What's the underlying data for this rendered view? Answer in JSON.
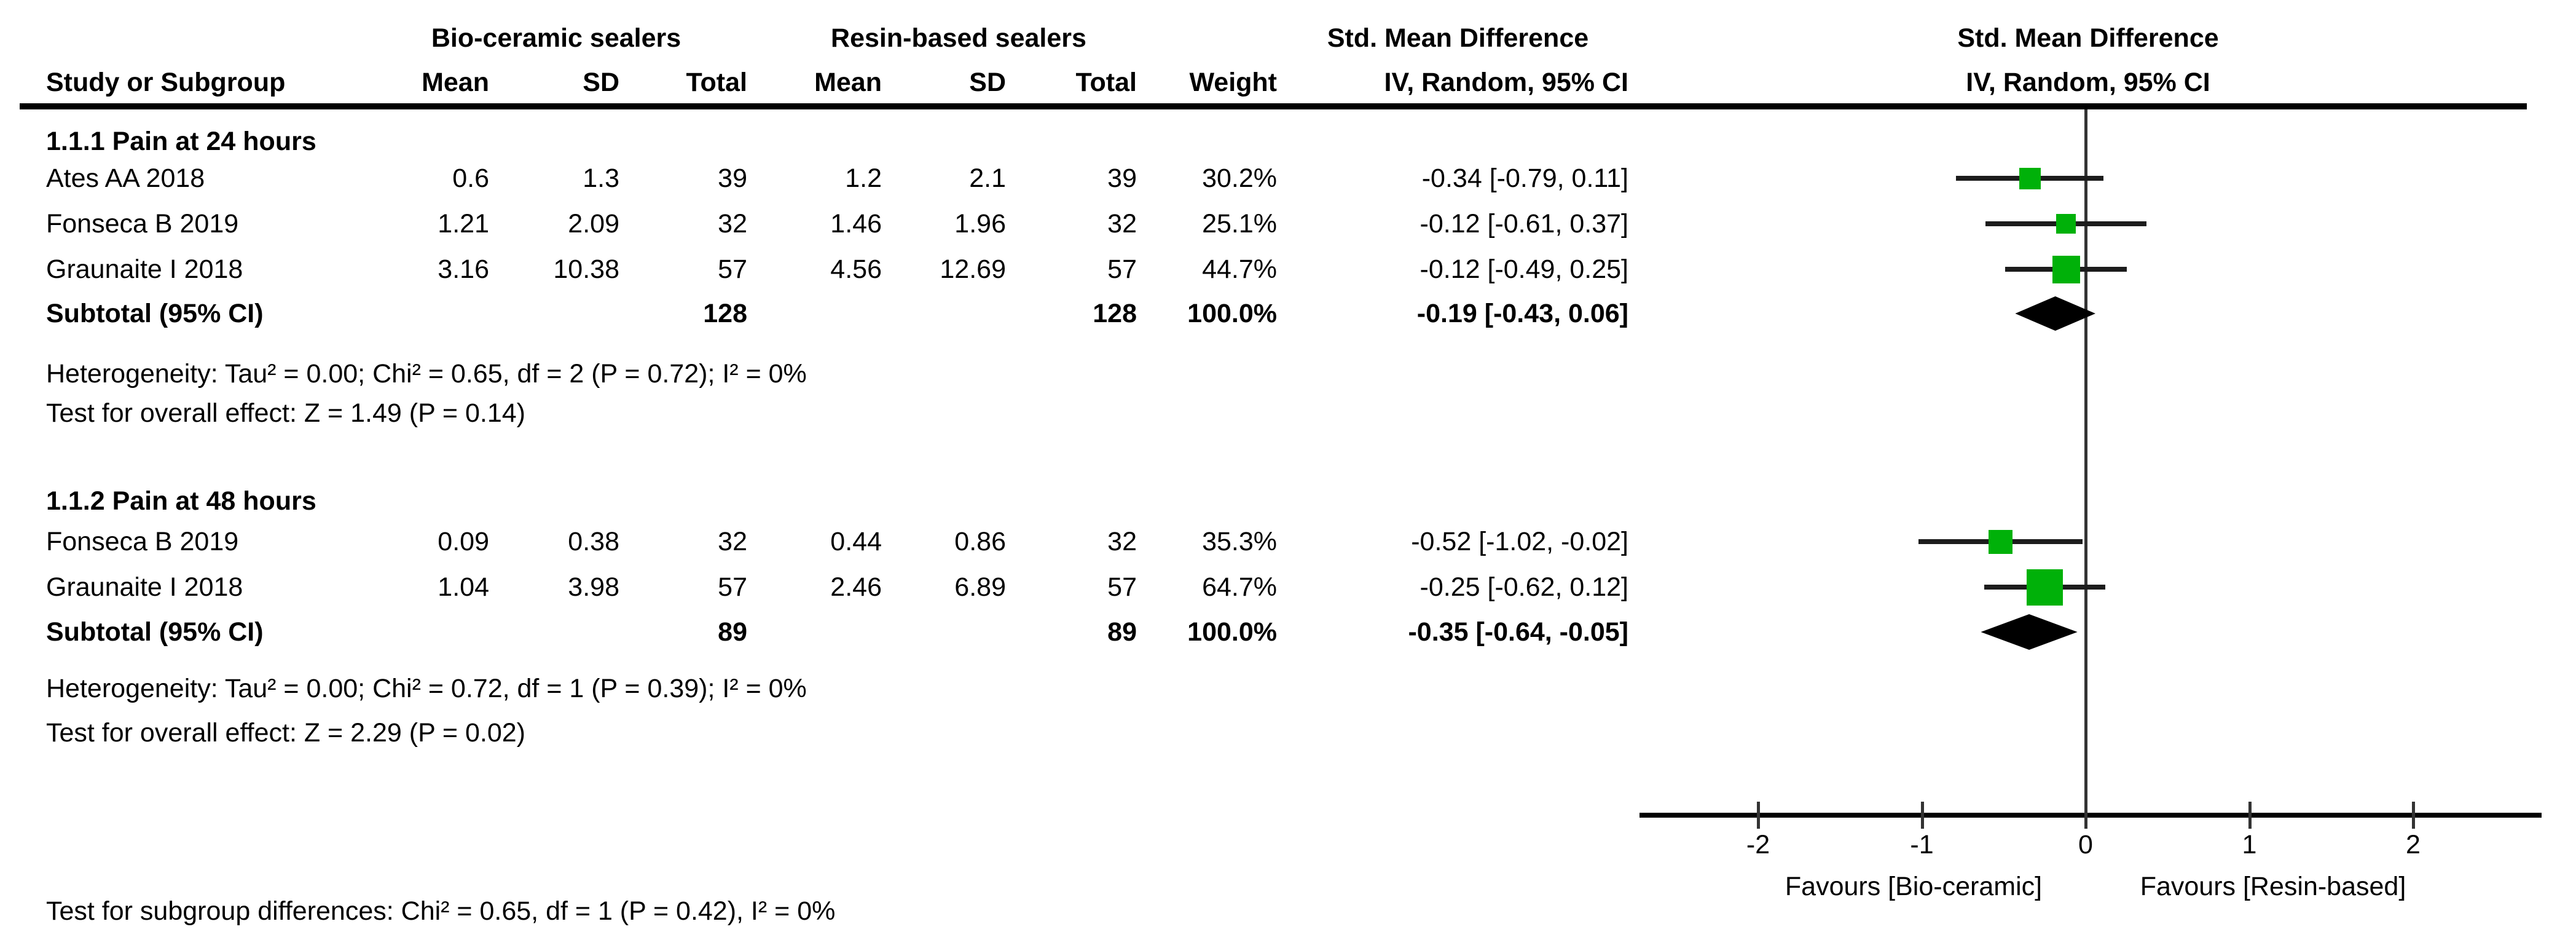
{
  "header": {
    "group1": "Bio-ceramic sealers",
    "group2": "Resin-based sealers",
    "effect_title": "Std. Mean Difference",
    "effect_subtitle": "IV, Random, 95% CI",
    "plot_title": "Std. Mean Difference",
    "plot_subtitle": "IV, Random, 95% CI",
    "columns": {
      "study": "Study or Subgroup",
      "mean1": "Mean",
      "sd1": "SD",
      "total1": "Total",
      "mean2": "Mean",
      "sd2": "SD",
      "total2": "Total",
      "weight": "Weight",
      "ci": "IV, Random, 95% CI"
    }
  },
  "sections": [
    {
      "label": "1.1.1 Pain at 24 hours",
      "rows": [
        {
          "study": "Ates AA 2018",
          "mean1": "0.6",
          "sd1": "1.3",
          "total1": "39",
          "mean2": "1.2",
          "sd2": "2.1",
          "total2": "39",
          "weight": "30.2%",
          "ci": "-0.34 [-0.79, 0.11]"
        },
        {
          "study": "Fonseca B 2019",
          "mean1": "1.21",
          "sd1": "2.09",
          "total1": "32",
          "mean2": "1.46",
          "sd2": "1.96",
          "total2": "32",
          "weight": "25.1%",
          "ci": "-0.12 [-0.61, 0.37]"
        },
        {
          "study": "Graunaite I 2018",
          "mean1": "3.16",
          "sd1": "10.38",
          "total1": "57",
          "mean2": "4.56",
          "sd2": "12.69",
          "total2": "57",
          "weight": "44.7%",
          "ci": "-0.12 [-0.49, 0.25]"
        }
      ],
      "subtotal": {
        "label": "Subtotal (95% CI)",
        "total1": "128",
        "total2": "128",
        "weight": "100.0%",
        "ci": "-0.19 [-0.43, 0.06]"
      },
      "heterogeneity": "Heterogeneity: Tau² = 0.00; Chi² = 0.65, df = 2 (P = 0.72); I² = 0%",
      "overall_effect": "Test for overall effect: Z = 1.49 (P = 0.14)"
    },
    {
      "label": "1.1.2 Pain at 48 hours",
      "rows": [
        {
          "study": "Fonseca B 2019",
          "mean1": "0.09",
          "sd1": "0.38",
          "total1": "32",
          "mean2": "0.44",
          "sd2": "0.86",
          "total2": "32",
          "weight": "35.3%",
          "ci": "-0.52 [-1.02, -0.02]"
        },
        {
          "study": "Graunaite I 2018",
          "mean1": "1.04",
          "sd1": "3.98",
          "total1": "57",
          "mean2": "2.46",
          "sd2": "6.89",
          "total2": "57",
          "weight": "64.7%",
          "ci": "-0.25 [-0.62, 0.12]"
        }
      ],
      "subtotal": {
        "label": "Subtotal (95% CI)",
        "total1": "89",
        "total2": "89",
        "weight": "100.0%",
        "ci": "-0.35 [-0.64, -0.05]"
      },
      "heterogeneity": "Heterogeneity: Tau² = 0.00; Chi² = 0.72, df = 1 (P = 0.39); I² = 0%",
      "overall_effect": "Test for overall effect: Z = 2.29 (P = 0.02)"
    }
  ],
  "footer": "Test for subgroup differences: Chi² = 0.65, df = 1 (P = 0.42), I² = 0%",
  "chart_data": {
    "type": "forest",
    "effect_measure": "Std. Mean Difference",
    "model": "IV, Random, 95% CI",
    "x_axis": {
      "ticks": [
        -2,
        -1,
        0,
        1,
        2
      ],
      "min": -2.75,
      "max": 2.75,
      "zero_line": 0,
      "favours_left": "Favours [Bio-ceramic]",
      "favours_right": "Favours [Resin-based]"
    },
    "studies": [
      {
        "section": "1.1.1 Pain at 24 hours",
        "study": "Ates AA 2018",
        "smd": -0.34,
        "ci_low": -0.79,
        "ci_high": 0.11,
        "weight_pct": 30.2
      },
      {
        "section": "1.1.1 Pain at 24 hours",
        "study": "Fonseca B 2019",
        "smd": -0.12,
        "ci_low": -0.61,
        "ci_high": 0.37,
        "weight_pct": 25.1
      },
      {
        "section": "1.1.1 Pain at 24 hours",
        "study": "Graunaite I 2018",
        "smd": -0.12,
        "ci_low": -0.49,
        "ci_high": 0.25,
        "weight_pct": 44.7
      },
      {
        "section": "1.1.2 Pain at 48 hours",
        "study": "Fonseca B 2019",
        "smd": -0.52,
        "ci_low": -1.02,
        "ci_high": -0.02,
        "weight_pct": 35.3
      },
      {
        "section": "1.1.2 Pain at 48 hours",
        "study": "Graunaite I 2018",
        "smd": -0.25,
        "ci_low": -0.62,
        "ci_high": 0.12,
        "weight_pct": 64.7
      }
    ],
    "diamonds": [
      {
        "label": "Subtotal (95% CI)",
        "section": "1.1.1 Pain at 24 hours",
        "smd": -0.19,
        "ci_low": -0.43,
        "ci_high": 0.06
      },
      {
        "label": "Subtotal (95% CI)",
        "section": "1.1.2 Pain at 48 hours",
        "smd": -0.35,
        "ci_low": -0.64,
        "ci_high": -0.05
      }
    ],
    "colors": {
      "square": "#00B109",
      "diamond": "#000000",
      "ci_line": "#1c1c1c",
      "axis": "#333333",
      "text": "#000000"
    }
  }
}
